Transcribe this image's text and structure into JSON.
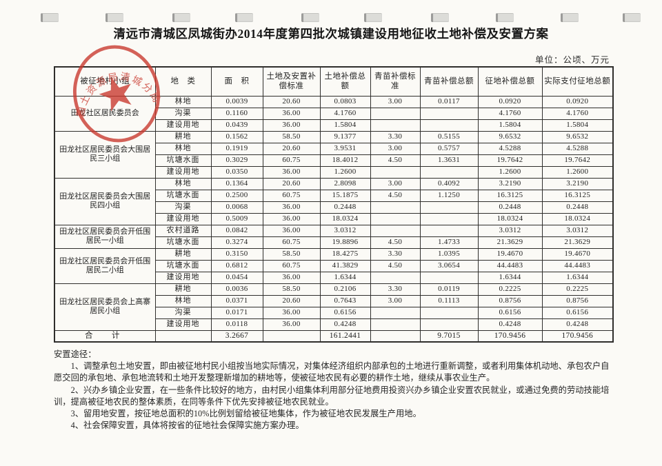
{
  "page": {
    "title": "清远市清城区凤城街办2014年度第四批次城镇建设用地征收土地补偿及安置方案",
    "unit_label": "单位：公顷、万元"
  },
  "stamp": {
    "arc_text": "国土资源局清城分局",
    "color": "#c9372c",
    "shape": "round-seal-with-star"
  },
  "table": {
    "headers": [
      "被征地村小组",
      "地　类",
      "面　积",
      "土地及安置补偿标准",
      "土地补偿总额",
      "青苗补偿标准",
      "青苗补偿总额",
      "征地补偿总额",
      "实际支付征地总额"
    ],
    "groups": [
      {
        "name": "田龙社区居民委员会",
        "rows": [
          [
            "林地",
            "0.0039",
            "20.60",
            "0.0803",
            "3.00",
            "0.0117",
            "0.0920",
            "0.0920"
          ],
          [
            "沟渠",
            "0.1160",
            "36.00",
            "4.1760",
            "",
            "",
            "4.1760",
            "4.1760"
          ],
          [
            "建设用地",
            "0.0439",
            "36.00",
            "1.5804",
            "",
            "",
            "1.5804",
            "1.5804"
          ]
        ]
      },
      {
        "name": "田龙社区居民委员会大围居民三小组",
        "rows": [
          [
            "耕地",
            "0.1562",
            "58.50",
            "9.1377",
            "3.30",
            "0.5155",
            "9.6532",
            "9.6532"
          ],
          [
            "林地",
            "0.1919",
            "20.60",
            "3.9531",
            "3.00",
            "0.5757",
            "4.5288",
            "4.5288"
          ],
          [
            "坑塘水面",
            "0.3029",
            "60.75",
            "18.4012",
            "4.50",
            "1.3631",
            "19.7642",
            "19.7642"
          ],
          [
            "建设用地",
            "0.0350",
            "36.00",
            "1.2600",
            "",
            "",
            "1.2600",
            "1.2600"
          ]
        ]
      },
      {
        "name": "田龙社区居民委员会大围居民四小组",
        "rows": [
          [
            "林地",
            "0.1364",
            "20.60",
            "2.8098",
            "3.00",
            "0.4092",
            "3.2190",
            "3.2190"
          ],
          [
            "坑塘水面",
            "0.2500",
            "60.75",
            "15.1875",
            "4.50",
            "1.1250",
            "16.3125",
            "16.3125"
          ],
          [
            "沟渠",
            "0.0068",
            "36.00",
            "0.2448",
            "",
            "",
            "0.2448",
            "0.2448"
          ],
          [
            "建设用地",
            "0.5009",
            "36.00",
            "18.0324",
            "",
            "",
            "18.0324",
            "18.0324"
          ]
        ]
      },
      {
        "name": "田龙社区居民委员会开低围居民一小组",
        "rows": [
          [
            "农村道路",
            "0.0842",
            "36.00",
            "3.0312",
            "",
            "",
            "3.0312",
            "3.0312"
          ],
          [
            "坑塘水面",
            "0.3274",
            "60.75",
            "19.8896",
            "4.50",
            "1.4733",
            "21.3629",
            "21.3629"
          ]
        ]
      },
      {
        "name": "田龙社区居民委员会开低围居民二小组",
        "rows": [
          [
            "耕地",
            "0.3150",
            "58.50",
            "18.4275",
            "3.30",
            "1.0395",
            "19.4670",
            "19.4670"
          ],
          [
            "坑塘水面",
            "0.6812",
            "60.75",
            "41.3829",
            "4.50",
            "3.0654",
            "44.4483",
            "44.4483"
          ],
          [
            "建设用地",
            "0.0454",
            "36.00",
            "1.6344",
            "",
            "",
            "1.6344",
            "1.6344"
          ]
        ]
      },
      {
        "name": "田龙社区居民委员会上高寨居民小组",
        "rows": [
          [
            "耕地",
            "0.0036",
            "58.50",
            "0.2106",
            "3.30",
            "0.0119",
            "0.2225",
            "0.2225"
          ],
          [
            "林地",
            "0.0371",
            "20.60",
            "0.7643",
            "3.00",
            "0.1113",
            "0.8756",
            "0.8756"
          ],
          [
            "沟渠",
            "0.0171",
            "36.00",
            "0.6156",
            "",
            "",
            "0.6156",
            "0.6156"
          ],
          [
            "建设用地",
            "0.0118",
            "36.00",
            "0.4248",
            "",
            "",
            "0.4248",
            "0.4248"
          ]
        ]
      }
    ],
    "total_row": [
      "合　计",
      "",
      "3.2667",
      "",
      "161.2441",
      "",
      "9.7015",
      "170.9456",
      "170.9456"
    ]
  },
  "notes": {
    "heading": "安置途径：",
    "items": [
      "1、调整承包土地安置，即由被征地村民小组按当地实际情况，对集体经济组织内部承包的土地进行重新调整，或者利用集体机动地、承包农户自愿交回的承包地、承包地流转和土地开发整理新增加的耕地等，使被征地农民有必要的耕作土地，继续从事农业生产。",
      "2、兴办乡镇企业安置，在一些条件比较好的地方，由村民小组集体利用部分征地费用投资兴办乡镇企业安置农民就业，或通过免费的劳动技能培训，提高被征地农民的整体素质，在同等条件下优先安排被征地农民就业。",
      "3、留用地安置，按征地总面积的10%比例划留给被征地集体，作为被征地农民发展生产用地。",
      "4、社会保障安置，具体将按省的征地社会保障实施方案办理。"
    ]
  }
}
